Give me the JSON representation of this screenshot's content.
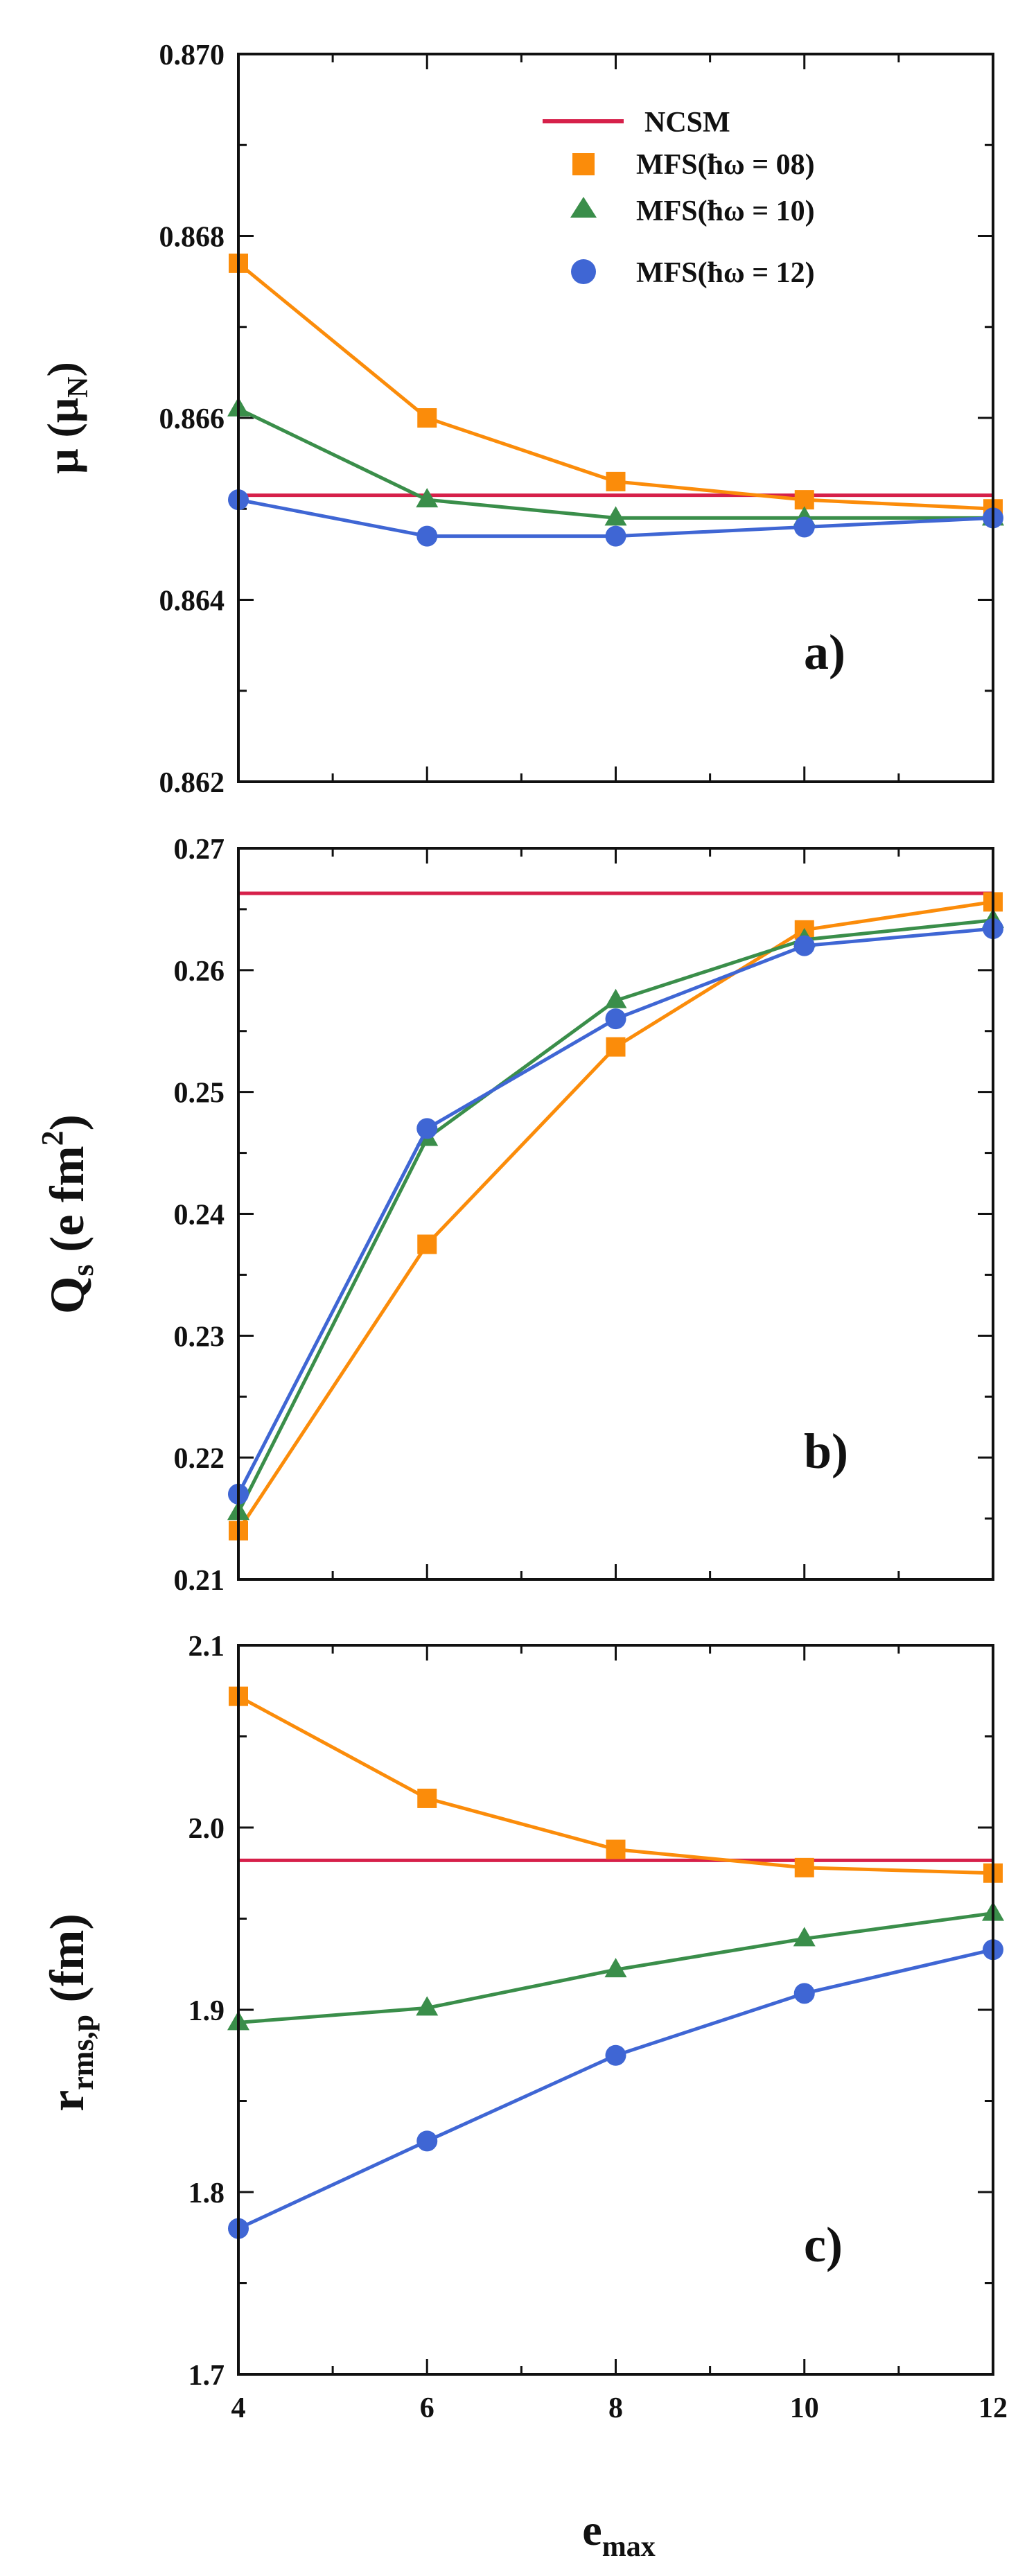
{
  "colors": {
    "ncsm": "#d6204a",
    "hw08": "#fb8c0a",
    "hw10": "#3a8e4a",
    "hw12": "#3f66d4"
  },
  "legend": {
    "ncsm": "NCSM",
    "hw08": "MFS(ħω = 08)",
    "hw10": "MFS(ħω = 10)",
    "hw12": "MFS(ħω = 12)"
  },
  "xlabel": "e",
  "xlabel_sub": "max",
  "chart_data": [
    {
      "type": "line",
      "panel_label": "a)",
      "ylabel": "μ (μ",
      "ylabel_sub": "N",
      "ylabel_suffix": ")",
      "ylim": [
        0.862,
        0.87
      ],
      "yticks": [
        "0.862",
        "0.864",
        "0.866",
        "0.868",
        "0.870"
      ],
      "x": [
        4,
        6,
        8,
        10,
        12
      ],
      "xlim": [
        4,
        12
      ],
      "xticks": [
        "4",
        "6",
        "8",
        "10",
        "12"
      ],
      "reference": {
        "name": "NCSM",
        "value": 0.86515
      },
      "series": [
        {
          "name": "MFS(ħω = 08)",
          "key": "hw08",
          "marker": "square",
          "values": [
            0.8677,
            0.866,
            0.8653,
            0.8651,
            0.865
          ]
        },
        {
          "name": "MFS(ħω = 10)",
          "key": "hw10",
          "marker": "triangle",
          "values": [
            0.8661,
            0.8651,
            0.8649,
            0.8649,
            0.8649
          ]
        },
        {
          "name": "MFS(ħω = 12)",
          "key": "hw12",
          "marker": "circle",
          "values": [
            0.8651,
            0.8647,
            0.8647,
            0.8648,
            0.8649
          ]
        }
      ]
    },
    {
      "type": "line",
      "panel_label": "b)",
      "ylabel": "Q",
      "ylabel_sub": "s",
      "ylabel_suffix": " (e fm",
      "ylabel_sup": "2",
      "ylabel_end": ")",
      "ylim": [
        0.21,
        0.27
      ],
      "yticks": [
        "0.21",
        "0.22",
        "0.23",
        "0.24",
        "0.25",
        "0.26",
        "0.27"
      ],
      "x": [
        4,
        6,
        8,
        10,
        12
      ],
      "xlim": [
        4,
        12
      ],
      "xticks": [
        "4",
        "6",
        "8",
        "10",
        "12"
      ],
      "reference": {
        "name": "NCSM",
        "value": 0.2663
      },
      "series": [
        {
          "name": "MFS(ħω = 08)",
          "key": "hw08",
          "marker": "square",
          "values": [
            0.214,
            0.2375,
            0.2537,
            0.2633,
            0.2656
          ]
        },
        {
          "name": "MFS(ħω = 10)",
          "key": "hw10",
          "marker": "triangle",
          "values": [
            0.2155,
            0.2462,
            0.2575,
            0.2625,
            0.2641
          ]
        },
        {
          "name": "MFS(ħω = 12)",
          "key": "hw12",
          "marker": "circle",
          "values": [
            0.217,
            0.247,
            0.256,
            0.262,
            0.2634
          ]
        }
      ]
    },
    {
      "type": "line",
      "panel_label": "c)",
      "ylabel": "r",
      "ylabel_sub": "rms,p",
      "ylabel_suffix": " (fm)",
      "ylim": [
        1.7,
        2.1
      ],
      "yticks": [
        "1.7",
        "1.8",
        "1.9",
        "2.0",
        "2.1"
      ],
      "x": [
        4,
        6,
        8,
        10,
        12
      ],
      "xlim": [
        4,
        12
      ],
      "xticks": [
        "4",
        "6",
        "8",
        "10",
        "12"
      ],
      "reference": {
        "name": "NCSM",
        "value": 1.982
      },
      "series": [
        {
          "name": "MFS(ħω = 08)",
          "key": "hw08",
          "marker": "square",
          "values": [
            2.072,
            2.016,
            1.988,
            1.978,
            1.975
          ]
        },
        {
          "name": "MFS(ħω = 10)",
          "key": "hw10",
          "marker": "triangle",
          "values": [
            1.893,
            1.901,
            1.922,
            1.939,
            1.953
          ]
        },
        {
          "name": "MFS(ħω = 12)",
          "key": "hw12",
          "marker": "circle",
          "values": [
            1.78,
            1.828,
            1.875,
            1.909,
            1.933
          ]
        }
      ]
    }
  ]
}
